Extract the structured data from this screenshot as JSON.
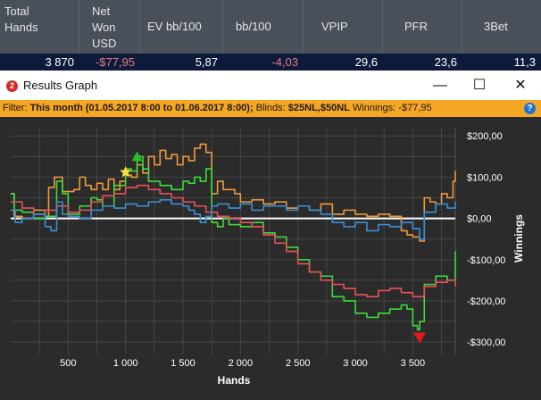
{
  "stats": {
    "headers": [
      {
        "lines": [
          "Total",
          "Hands"
        ]
      },
      {
        "lines": [
          "Net",
          "Won",
          "USD"
        ]
      },
      {
        "lines": [
          "EV bb/100"
        ]
      },
      {
        "lines": [
          "bb/100"
        ]
      },
      {
        "lines": [
          "VPIP"
        ]
      },
      {
        "lines": [
          "PFR"
        ]
      },
      {
        "lines": [
          "3Bet"
        ]
      }
    ],
    "values": [
      "3 870",
      "-$77,95",
      "5,87",
      "-4,03",
      "29,6",
      "23,6",
      "11,3"
    ]
  },
  "window": {
    "title": "Results Graph",
    "icon_label": "2",
    "minimize_glyph": "—",
    "maximize_glyph": "☐",
    "close_glyph": "✕"
  },
  "filter": {
    "label": "Filter:",
    "range": "This month (01.05.2017 8:00 to 01.06.2017 8:00);",
    "blinds_label": "Blinds:",
    "blinds": "$25NL,$50NL",
    "winnings_label": "Winnings:",
    "winnings": "-$77,95",
    "help": "?"
  },
  "chart_data": {
    "type": "line",
    "xlabel": "Hands",
    "ylabel": "Winnings",
    "xlim": [
      0,
      3870
    ],
    "ylim": [
      -330,
      220
    ],
    "x_ticks": [
      500,
      1000,
      1500,
      2000,
      2500,
      3000,
      3500
    ],
    "x_tick_labels": [
      "500",
      "1 000",
      "1 500",
      "2 000",
      "2 500",
      "3 000",
      "3 500"
    ],
    "y_ticks": [
      200,
      100,
      0,
      -100,
      -200,
      -300
    ],
    "y_tick_labels": [
      "$200,00",
      "$100,00",
      "$0,00",
      "-$100,00",
      "-$200,00",
      "-$300,00"
    ],
    "grid": true,
    "colors": {
      "green": "#3ddc3d",
      "orange": "#f0993b",
      "red": "#e8525a",
      "blue": "#3a8fd6",
      "zero": "#ffffff"
    },
    "series": [
      {
        "key": "orange",
        "color": "#f0993b",
        "x": [
          0,
          30,
          100,
          200,
          300,
          330,
          380,
          450,
          550,
          600,
          650,
          700,
          750,
          800,
          850,
          900,
          950,
          1000,
          1050,
          1100,
          1150,
          1200,
          1250,
          1300,
          1350,
          1400,
          1450,
          1500,
          1550,
          1600,
          1650,
          1700,
          1750,
          1800,
          1850,
          1900,
          1950,
          2000,
          2100,
          2200,
          2300,
          2400,
          2500,
          2600,
          2700,
          2800,
          2900,
          3000,
          3100,
          3200,
          3300,
          3400,
          3450,
          3500,
          3560,
          3600,
          3650,
          3700,
          3750,
          3800,
          3850,
          3870
        ],
        "y": [
          60,
          5,
          0,
          20,
          5,
          75,
          100,
          65,
          70,
          100,
          80,
          70,
          85,
          70,
          95,
          70,
          90,
          105,
          100,
          130,
          110,
          150,
          130,
          165,
          145,
          155,
          130,
          150,
          140,
          170,
          180,
          160,
          60,
          90,
          70,
          70,
          60,
          40,
          45,
          35,
          40,
          25,
          30,
          20,
          35,
          10,
          20,
          10,
          5,
          10,
          5,
          -30,
          -40,
          -45,
          -55,
          50,
          40,
          35,
          60,
          50,
          90,
          115
        ]
      },
      {
        "key": "green",
        "color": "#3ddc3d",
        "x": [
          0,
          30,
          100,
          200,
          300,
          400,
          450,
          500,
          600,
          700,
          750,
          800,
          900,
          1000,
          1050,
          1100,
          1150,
          1200,
          1300,
          1400,
          1500,
          1550,
          1600,
          1650,
          1700,
          1750,
          1800,
          1850,
          1900,
          2000,
          2100,
          2200,
          2300,
          2400,
          2500,
          2600,
          2700,
          2800,
          2900,
          3000,
          3100,
          3200,
          3300,
          3400,
          3450,
          3500,
          3540,
          3560,
          3600,
          3700,
          3800,
          3870
        ],
        "y": [
          60,
          20,
          15,
          0,
          5,
          90,
          60,
          10,
          30,
          50,
          45,
          30,
          80,
          120,
          115,
          150,
          120,
          90,
          80,
          70,
          90,
          85,
          100,
          90,
          120,
          -10,
          -20,
          0,
          -15,
          -20,
          -10,
          -35,
          -45,
          -70,
          -100,
          -130,
          -140,
          -190,
          -200,
          -230,
          -240,
          -230,
          -220,
          -210,
          -220,
          -260,
          -270,
          -250,
          -160,
          -140,
          -150,
          -80
        ]
      },
      {
        "key": "red",
        "color": "#e8525a",
        "x": [
          0,
          100,
          200,
          300,
          400,
          500,
          600,
          700,
          800,
          900,
          1000,
          1100,
          1200,
          1300,
          1400,
          1500,
          1600,
          1700,
          1800,
          1900,
          2000,
          2100,
          2200,
          2300,
          2400,
          2500,
          2600,
          2700,
          2800,
          2900,
          3000,
          3100,
          3200,
          3300,
          3400,
          3500,
          3600,
          3700,
          3800,
          3870
        ],
        "y": [
          40,
          25,
          10,
          20,
          30,
          15,
          20,
          40,
          55,
          60,
          75,
          80,
          70,
          60,
          50,
          40,
          30,
          15,
          5,
          0,
          -10,
          -20,
          -40,
          -60,
          -80,
          -110,
          -130,
          -150,
          -160,
          -170,
          -185,
          -190,
          -175,
          -170,
          -180,
          -190,
          -165,
          -155,
          -150,
          -165
        ]
      },
      {
        "key": "blue",
        "color": "#3a8fd6",
        "x": [
          0,
          40,
          100,
          200,
          300,
          350,
          400,
          450,
          500,
          600,
          700,
          800,
          900,
          1000,
          1100,
          1200,
          1300,
          1400,
          1500,
          1550,
          1600,
          1650,
          1700,
          1750,
          1800,
          1900,
          2000,
          2100,
          2200,
          2300,
          2400,
          2500,
          2600,
          2700,
          2800,
          2900,
          3000,
          3100,
          3200,
          3300,
          3400,
          3500,
          3560,
          3600,
          3700,
          3800,
          3870
        ],
        "y": [
          20,
          -10,
          0,
          10,
          -20,
          -30,
          40,
          10,
          5,
          0,
          20,
          30,
          25,
          35,
          30,
          40,
          45,
          35,
          30,
          20,
          10,
          -10,
          5,
          30,
          35,
          25,
          35,
          20,
          30,
          30,
          20,
          30,
          20,
          10,
          -10,
          -20,
          -10,
          -30,
          -15,
          -20,
          -10,
          -25,
          -50,
          15,
          35,
          25,
          40
        ]
      }
    ],
    "markers": [
      {
        "type": "star",
        "x": 1000,
        "y": 112,
        "color": "#ffe23a"
      },
      {
        "type": "triangle-up",
        "x": 1100,
        "y": 150,
        "color": "#2bc02b"
      },
      {
        "type": "triangle-down",
        "x": 3560,
        "y": -290,
        "color": "#e01b1b"
      }
    ]
  }
}
